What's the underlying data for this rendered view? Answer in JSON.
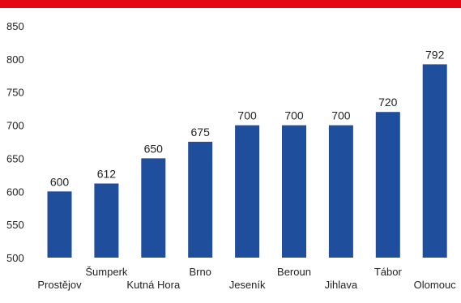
{
  "chart_data": {
    "type": "bar",
    "title": "",
    "xlabel": "",
    "ylabel": "",
    "categories": [
      "Prostějov",
      "Šumperk",
      "Kutná Hora",
      "Brno",
      "Jeseník",
      "Beroun",
      "Jihlava",
      "Tábor",
      "Olomouc"
    ],
    "values": [
      600,
      612,
      650,
      675,
      700,
      700,
      700,
      720,
      792
    ],
    "ylim": [
      500,
      850
    ],
    "yticks": [
      500,
      550,
      600,
      650,
      700,
      750,
      800,
      850
    ],
    "grid": false,
    "legend": "none",
    "bar_color": "#1f4e9c"
  }
}
